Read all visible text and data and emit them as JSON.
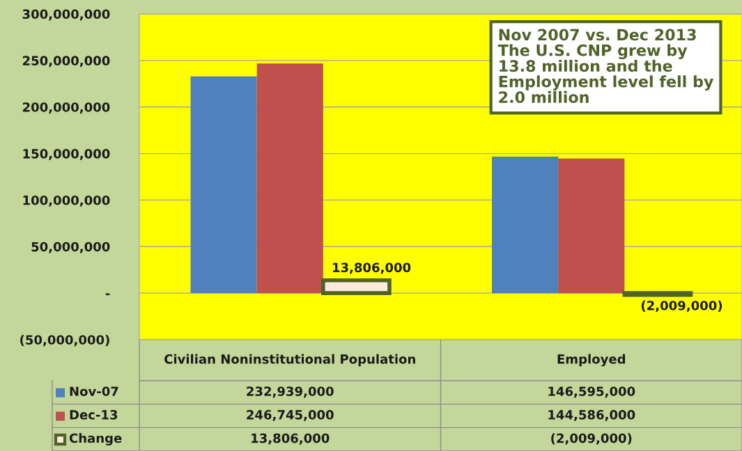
{
  "chart_data": {
    "type": "bar",
    "categories": [
      "Civilian Noninstitutional Population",
      "Employed"
    ],
    "series": [
      {
        "name": "Nov-07",
        "color": "#4f81bd",
        "values": [
          232939000,
          146595000
        ],
        "value_labels": [
          "232,939,000",
          "146,595,000"
        ]
      },
      {
        "name": "Dec-13",
        "color": "#c0504d",
        "values": [
          246745000,
          144586000
        ],
        "value_labels": [
          "246,745,000",
          "144,586,000"
        ]
      },
      {
        "name": "Change",
        "color": "#fdeada",
        "values": [
          13806000,
          -2009000
        ],
        "value_labels": [
          "13,806,000",
          "(2,009,000)"
        ]
      }
    ],
    "ylim": [
      -50000000,
      300000000
    ],
    "yticks": [
      {
        "value": -50000000,
        "label": "(50,000,000)"
      },
      {
        "value": 0,
        "label": "-"
      },
      {
        "value": 50000000,
        "label": "50,000,000"
      },
      {
        "value": 100000000,
        "label": "100,000,000"
      },
      {
        "value": 150000000,
        "label": "150,000,000"
      },
      {
        "value": 200000000,
        "label": "200,000,000"
      },
      {
        "value": 250000000,
        "label": "250,000,000"
      },
      {
        "value": 300000000,
        "label": "300,000,000"
      }
    ],
    "grid": "y",
    "legend": "bottom",
    "annotations": [
      "Nov 2007 vs. Dec 2013\nThe U.S. CNP grew by\n13.8 million and the\nEmployment level fell by\n2.0 million"
    ]
  }
}
